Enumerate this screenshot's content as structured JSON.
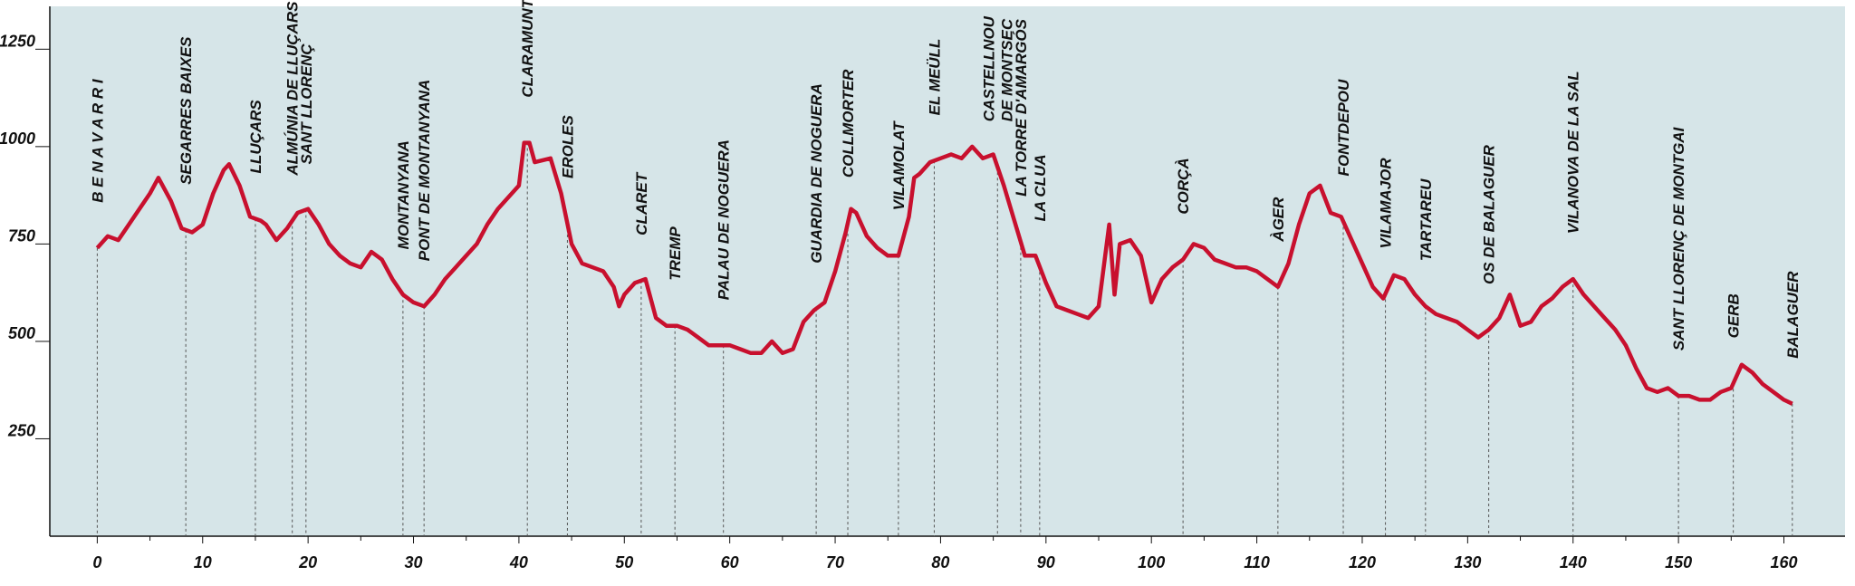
{
  "chart_data": {
    "type": "line",
    "x": [
      0,
      1,
      2,
      3,
      4,
      5,
      5.8,
      7,
      8,
      9,
      10,
      11,
      12,
      12.5,
      13.5,
      14.5,
      15.5,
      16,
      17,
      18,
      19,
      20,
      21,
      22,
      23,
      24,
      25,
      26,
      27,
      28,
      29,
      30,
      31,
      32,
      33,
      34,
      36,
      37,
      38,
      39,
      40,
      40.5,
      41,
      41.5,
      43,
      44,
      45,
      46,
      47,
      48,
      49,
      49.5,
      50,
      51,
      52,
      53,
      54,
      55,
      56,
      57,
      58,
      59,
      60,
      61,
      62,
      63,
      64,
      65,
      66,
      67,
      68,
      69,
      70,
      71,
      71.5,
      72,
      73,
      74,
      75,
      76,
      77,
      77.5,
      78,
      79,
      80,
      81,
      82,
      83,
      84,
      85,
      86,
      87,
      88,
      89,
      90,
      91,
      92,
      93,
      94,
      95,
      96,
      96.5,
      97,
      98,
      99,
      100,
      101,
      102,
      103,
      104,
      105,
      106,
      107,
      108,
      109,
      110,
      111,
      112,
      113,
      114,
      115,
      116,
      117,
      118,
      119,
      120,
      121,
      122,
      123,
      124,
      125,
      126,
      127,
      128,
      129,
      130,
      131,
      132,
      133,
      134,
      135,
      136,
      137,
      138,
      139,
      140,
      141,
      142,
      143,
      144,
      145,
      146,
      147,
      148,
      149,
      150,
      151,
      152,
      153,
      154,
      155,
      156,
      157,
      158,
      159,
      160,
      160.8
    ],
    "series": [
      {
        "color": "#c8102e",
        "values": [
          740,
          770,
          760,
          800,
          840,
          880,
          920,
          860,
          790,
          780,
          800,
          880,
          940,
          955,
          900,
          820,
          810,
          800,
          760,
          790,
          830,
          840,
          800,
          750,
          720,
          700,
          690,
          730,
          710,
          660,
          620,
          600,
          590,
          620,
          660,
          690,
          750,
          800,
          840,
          870,
          900,
          1010,
          1010,
          960,
          970,
          880,
          750,
          700,
          690,
          680,
          640,
          590,
          620,
          650,
          660,
          560,
          540,
          540,
          530,
          510,
          490,
          490,
          490,
          480,
          470,
          470,
          500,
          470,
          480,
          550,
          580,
          600,
          680,
          780,
          840,
          830,
          770,
          740,
          720,
          720,
          820,
          920,
          930,
          960,
          970,
          980,
          970,
          1000,
          970,
          980,
          900,
          810,
          720,
          720,
          650,
          590,
          580,
          570,
          560,
          590,
          800,
          620,
          750,
          760,
          720,
          600,
          660,
          690,
          710,
          750,
          740,
          710,
          700,
          690,
          690,
          680,
          660,
          640,
          700,
          800,
          880,
          900,
          830,
          820,
          760,
          700,
          640,
          610,
          670,
          660,
          620,
          590,
          570,
          560,
          550,
          530,
          510,
          530,
          560,
          620,
          540,
          550,
          590,
          610,
          640,
          660,
          620,
          590,
          560,
          530,
          490,
          430,
          380,
          370,
          380,
          360,
          360,
          350,
          350,
          370,
          380,
          440,
          420,
          390,
          370,
          350,
          340
        ]
      }
    ],
    "places": [
      {
        "x": 0,
        "label": [
          "B E N A V A R R I"
        ]
      },
      {
        "x": 8.4,
        "label": [
          "SEGARRES BAIXES"
        ]
      },
      {
        "x": 15,
        "label": [
          "LLUÇARS"
        ]
      },
      {
        "x": 18.5,
        "label": [
          "ALMÚNIA DE LLUÇARS"
        ]
      },
      {
        "x": 19.8,
        "label": [
          "SANT LLORENÇ"
        ]
      },
      {
        "x": 29,
        "label": [
          "MONTANYANA"
        ]
      },
      {
        "x": 31,
        "label": [
          "PONT DE MONTANYANA"
        ]
      },
      {
        "x": 40.8,
        "label": [
          "CLARAMUNT"
        ]
      },
      {
        "x": 44.6,
        "label": [
          "EROLES"
        ]
      },
      {
        "x": 51.6,
        "label": [
          "CLARET"
        ]
      },
      {
        "x": 54.8,
        "label": [
          "TREMP"
        ]
      },
      {
        "x": 59.4,
        "label": [
          "PALAU DE NOGUERA"
        ]
      },
      {
        "x": 68.2,
        "label": [
          "GUARDIA DE NOGUERA"
        ]
      },
      {
        "x": 71.2,
        "label": [
          "COLLMORTER"
        ]
      },
      {
        "x": 76,
        "label": [
          "VILAMOLAT"
        ]
      },
      {
        "x": 79.4,
        "label": [
          "EL MEÜLL"
        ]
      },
      {
        "x": 85.4,
        "label": [
          "CASTELLNOU",
          "DE MONTSEC"
        ]
      },
      {
        "x": 87.6,
        "label": [
          "LA TORRE D'AMARGÓS"
        ]
      },
      {
        "x": 89.4,
        "label": [
          "LA CLUA"
        ]
      },
      {
        "x": 103,
        "label": [
          "CORÇÀ"
        ]
      },
      {
        "x": 112,
        "label": [
          "ÀGER"
        ]
      },
      {
        "x": 118.2,
        "label": [
          "FONTDEPOU"
        ]
      },
      {
        "x": 122.2,
        "label": [
          "VILAMAJOR"
        ]
      },
      {
        "x": 126,
        "label": [
          "TARTAREU"
        ]
      },
      {
        "x": 132,
        "label": [
          "OS DE BALAGUER"
        ]
      },
      {
        "x": 140,
        "label": [
          "VILANOVA DE LA SAL"
        ]
      },
      {
        "x": 150,
        "label": [
          "SANT LLORENÇ DE MONTGAI"
        ]
      },
      {
        "x": 155.2,
        "label": [
          "GERB"
        ]
      },
      {
        "x": 160.8,
        "label": [
          "BALAGUER"
        ]
      }
    ],
    "xlim": [
      -4.5,
      165.8
    ],
    "ylim": [
      0,
      1360
    ],
    "xticks": [
      0,
      10,
      20,
      30,
      40,
      50,
      60,
      70,
      80,
      90,
      100,
      110,
      120,
      130,
      140,
      150,
      160
    ],
    "yticks": [
      250,
      500,
      750,
      1000,
      1250
    ],
    "background": "#d6e5e8"
  }
}
